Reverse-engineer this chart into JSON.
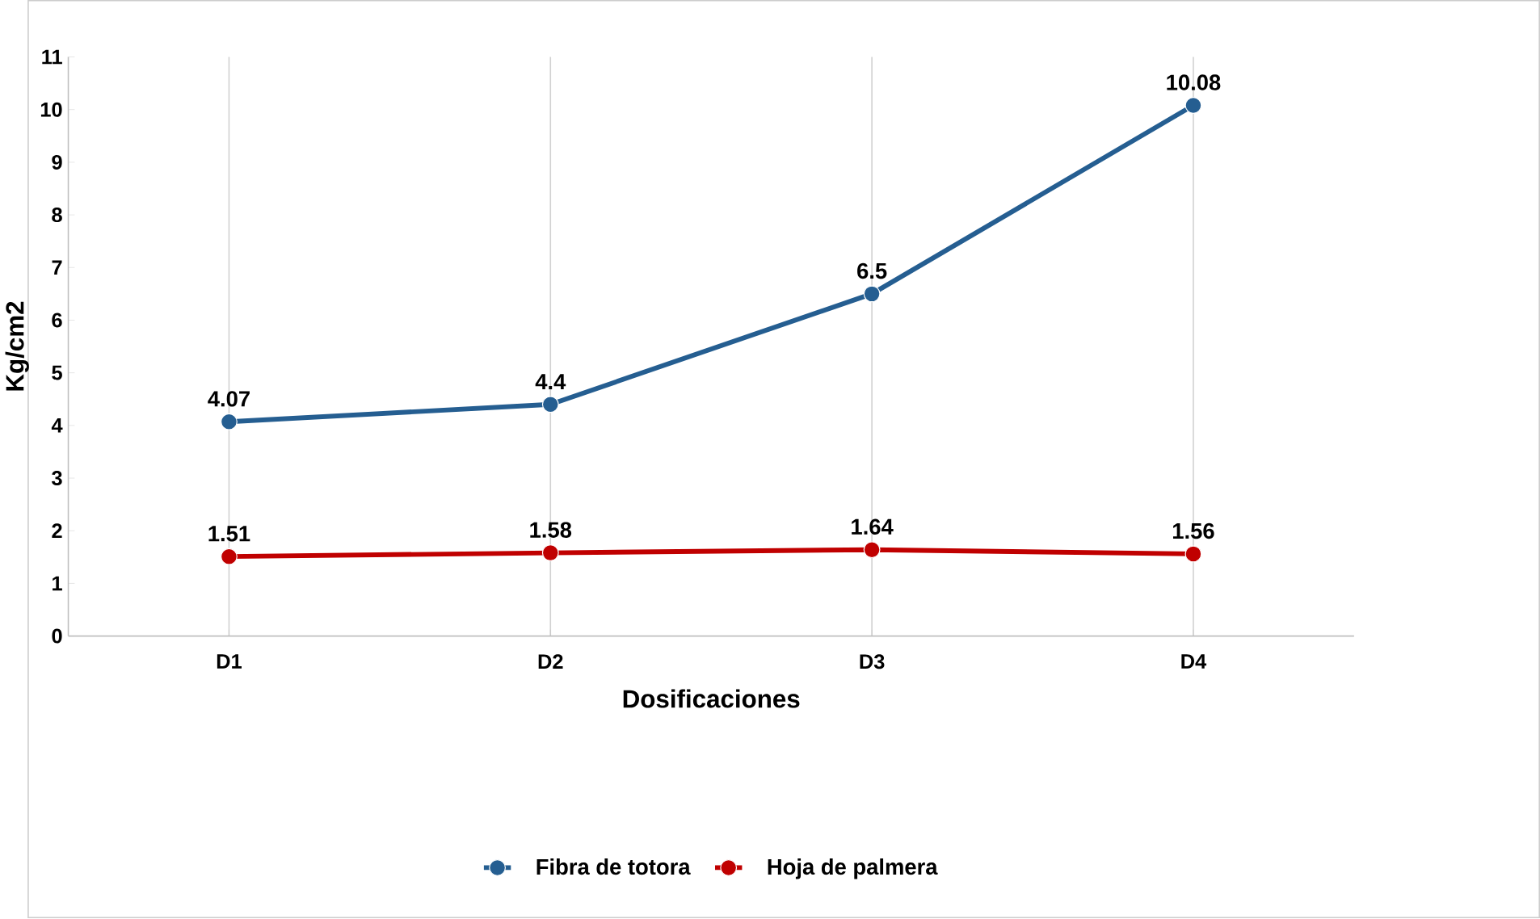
{
  "chart_data": {
    "type": "line",
    "xlabel": "Dosificaciones",
    "ylabel": "Kg/cm2",
    "categories": [
      "D1",
      "D2",
      "D3",
      "D4"
    ],
    "series": [
      {
        "name": "Fibra de totora",
        "color": "#255e91",
        "values": [
          4.07,
          4.4,
          6.5,
          10.08
        ]
      },
      {
        "name": "Hoja de palmera",
        "color": "#c00000",
        "values": [
          1.51,
          1.58,
          1.64,
          1.56
        ]
      }
    ],
    "ylim": [
      0,
      11
    ],
    "yticks": [
      0,
      1,
      2,
      3,
      4,
      5,
      6,
      7,
      8,
      9,
      10,
      11
    ],
    "grid": "x",
    "legend": "bottom",
    "marker": "circle",
    "line_style": "solid",
    "data_labels": true
  }
}
